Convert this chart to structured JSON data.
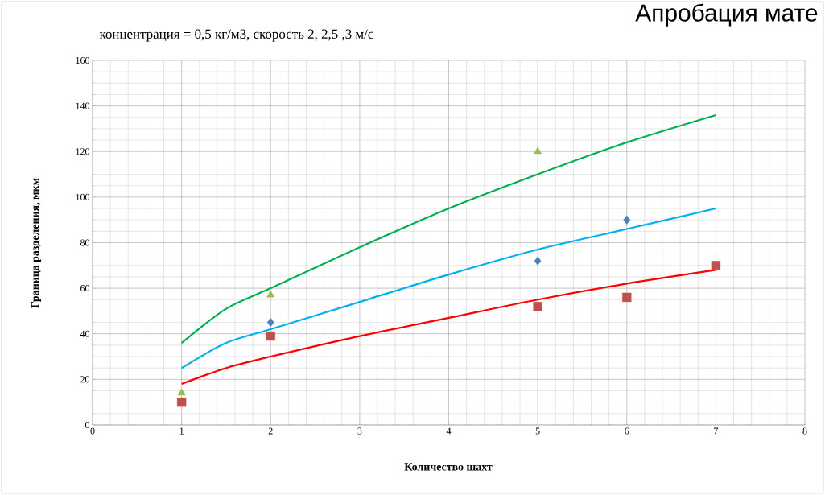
{
  "chart_data": {
    "type": "line",
    "title": "концентрация = 0,5 кг/м3, скорость 2, 2,5 ,3 м/с",
    "xlabel": "Количество шахт",
    "ylabel": "Граница разделения, мкм",
    "annotations": [
      "Апробация мате"
    ],
    "xlim": [
      0,
      8
    ],
    "xticks": [
      0,
      1,
      2,
      3,
      4,
      5,
      6,
      7,
      8
    ],
    "ylim": [
      0,
      160
    ],
    "yticks": [
      0,
      20,
      40,
      60,
      80,
      100,
      120,
      140,
      160
    ],
    "grid": true,
    "line_style": "solid",
    "series": [
      {
        "color": "#00b050",
        "marker": "none",
        "x": [
          1,
          1.5,
          2,
          3,
          4,
          5,
          6,
          7
        ],
        "values": [
          36,
          51,
          60,
          78,
          95,
          110,
          124,
          136
        ]
      },
      {
        "color": "#00b0f0",
        "marker": "none",
        "x": [
          1,
          1.5,
          2,
          3,
          4,
          5,
          6,
          7
        ],
        "values": [
          25,
          36,
          42,
          54,
          66,
          77,
          86,
          95
        ]
      },
      {
        "color": "#ff0000",
        "marker": "none",
        "x": [
          1,
          1.5,
          2,
          3,
          4,
          5,
          6,
          7
        ],
        "values": [
          18,
          25,
          30,
          39,
          47,
          55,
          62,
          68
        ]
      },
      {
        "type": "scatter",
        "color": "#4f81bd",
        "marker": "diamond",
        "x": [
          2,
          5,
          6
        ],
        "values": [
          45,
          72,
          90
        ]
      },
      {
        "type": "scatter",
        "color": "#c0504d",
        "marker": "square",
        "x": [
          1,
          2,
          5,
          6,
          7
        ],
        "values": [
          10,
          39,
          52,
          56,
          70
        ]
      },
      {
        "type": "scatter",
        "color": "#9bbb59",
        "marker": "triangle",
        "x": [
          1,
          2,
          5
        ],
        "values": [
          14,
          57,
          120
        ]
      }
    ]
  }
}
